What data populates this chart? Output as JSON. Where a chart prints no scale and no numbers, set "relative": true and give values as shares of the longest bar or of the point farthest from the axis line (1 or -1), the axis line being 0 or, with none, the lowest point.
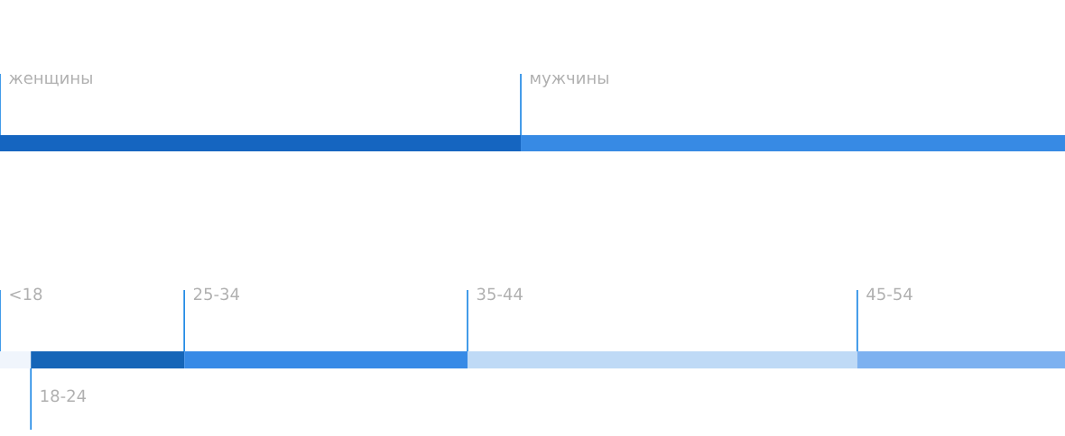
{
  "chart_data": [
    {
      "type": "bar",
      "orientation": "horizontal",
      "stacked": true,
      "relative": true,
      "categories": [
        null
      ],
      "series": [
        {
          "name": "женщины",
          "color": "#1565c0",
          "values": [
            0.489
          ]
        },
        {
          "name": "мужчины",
          "color": "#378ae4",
          "values": [
            0.511
          ]
        }
      ]
    },
    {
      "type": "bar",
      "orientation": "horizontal",
      "stacked": true,
      "relative": true,
      "categories": [
        null
      ],
      "series": [
        {
          "name": "<18",
          "color": "#f0f5fc",
          "values": [
            0.029
          ]
        },
        {
          "name": "18-24",
          "color": "#1565b8",
          "values": [
            0.144
          ]
        },
        {
          "name": "25-34",
          "color": "#378ae6",
          "values": [
            0.266
          ]
        },
        {
          "name": "35-44",
          "color": "#bfdaf6",
          "values": [
            0.366
          ]
        },
        {
          "name": "45-54",
          "color": "#7db1f0",
          "values": [
            0.195
          ]
        }
      ]
    }
  ]
}
